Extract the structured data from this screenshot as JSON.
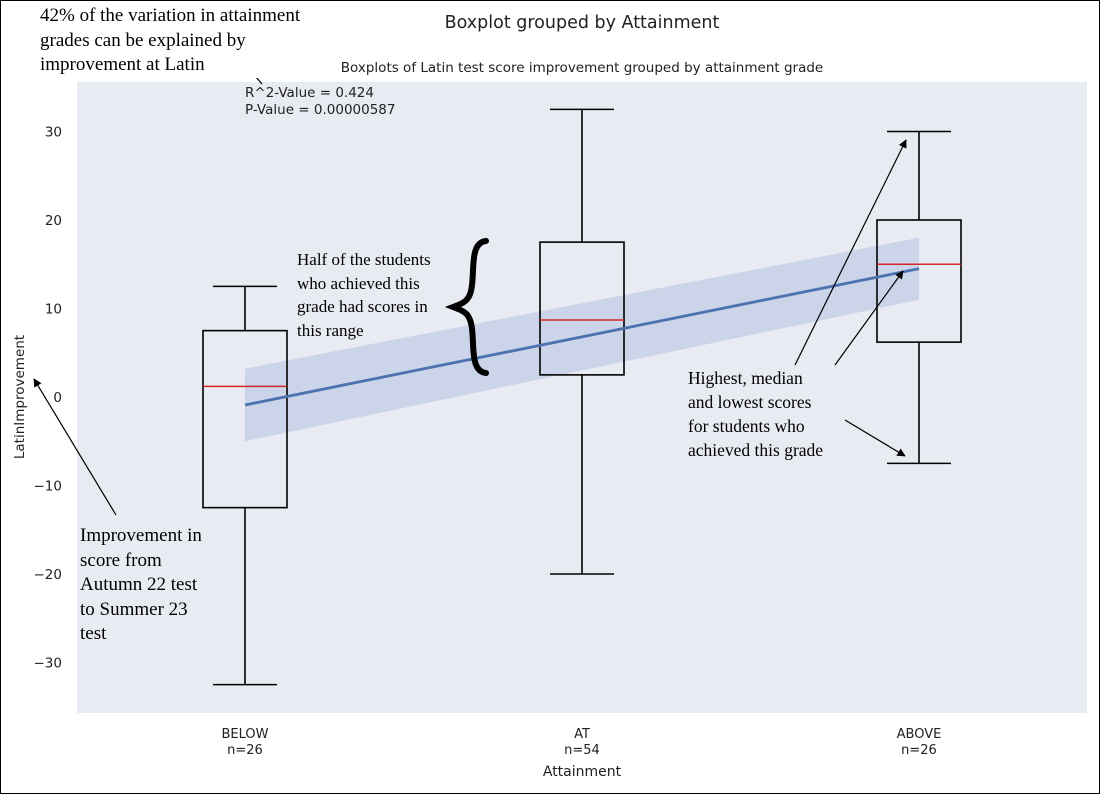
{
  "chart_data": {
    "type": "boxplot",
    "title": "Boxplot grouped by Attainment",
    "subtitle": "Boxplots of Latin test score improvement grouped by attainment grade",
    "xlabel": "Attainment",
    "ylabel": "LatinImprovement",
    "ylim": [
      -36,
      36.5
    ],
    "yticks": [
      30,
      20,
      10,
      0,
      -10,
      -20,
      -30
    ],
    "ytick_labels": [
      "30",
      "20",
      "10",
      "0",
      "−10",
      "−20",
      "−30"
    ],
    "categories": [
      "BELOW",
      "AT",
      "ABOVE"
    ],
    "counts": [
      "n=26",
      "n=54",
      "n=26"
    ],
    "boxes": [
      {
        "name": "BELOW",
        "whislo": -32.5,
        "q1": -12.5,
        "med": 1.2,
        "q3": 7.5,
        "whishi": 12.5
      },
      {
        "name": "AT",
        "whislo": -20.0,
        "q1": 2.5,
        "med": 8.7,
        "q3": 17.5,
        "whishi": 32.5
      },
      {
        "name": "ABOVE",
        "whislo": -7.5,
        "q1": 6.2,
        "med": 15.0,
        "q3": 20.0,
        "whishi": 30.0
      }
    ],
    "regression": {
      "x": [
        "BELOW",
        "ABOVE"
      ],
      "y": [
        -0.9,
        14.5
      ],
      "ci_lower": [
        -5.0,
        11.0
      ],
      "ci_upper": [
        3.2,
        18.0
      ]
    },
    "stats_lines": [
      "R^2-Value = 0.424",
      "P-Value = 0.00000587"
    ],
    "grid": false,
    "colors": {
      "plot_background": "#e8ebf2",
      "box_edge": "#000000",
      "median": "#d62728",
      "regression_line": "#4c72b0",
      "confidence_band": "#c5d0e6"
    }
  },
  "annotations": {
    "variation": [
      "42% of the variation in attainment",
      "grades can be explained by",
      "improvement at Latin"
    ],
    "half": [
      "Half of the students",
      "who achieved this",
      "grade had scores in",
      "this range"
    ],
    "improvement": [
      "Improvement in",
      "score from",
      "Autumn 22 test",
      "to Summer 23",
      "test"
    ],
    "extremes": [
      "Highest, median",
      "and lowest scores",
      "for students who",
      "achieved this grade"
    ]
  }
}
